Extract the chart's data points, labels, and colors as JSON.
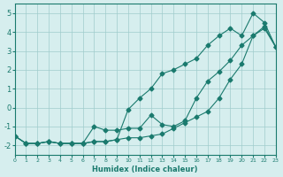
{
  "xlabel": "Humidex (Indice chaleur)",
  "ylabel": "",
  "xlim": [
    0,
    23
  ],
  "ylim": [
    -2.5,
    5.5
  ],
  "yticks": [
    -2,
    -1,
    0,
    1,
    2,
    3,
    4,
    5
  ],
  "xticks": [
    0,
    1,
    2,
    3,
    4,
    5,
    6,
    7,
    8,
    9,
    10,
    11,
    12,
    13,
    14,
    15,
    16,
    17,
    18,
    19,
    20,
    21,
    22,
    23
  ],
  "line_color": "#1a7a6e",
  "bg_color": "#d6eeee",
  "grid_color": "#a0cccc",
  "series": {
    "min": {
      "x": [
        0,
        1,
        2,
        3,
        4,
        5,
        6,
        7,
        8,
        9,
        10,
        11,
        12,
        13,
        14,
        15,
        16,
        17,
        18,
        19,
        20,
        21,
        22,
        23
      ],
      "y": [
        -1.5,
        -1.9,
        -1.9,
        -1.8,
        -1.9,
        -1.9,
        -1.9,
        -1.8,
        -1.8,
        -1.7,
        -1.6,
        -1.6,
        -1.5,
        -1.4,
        -1.1,
        -0.8,
        -0.5,
        -0.2,
        0.5,
        1.5,
        2.3,
        3.8,
        4.3,
        3.2
      ]
    },
    "mean": {
      "x": [
        0,
        1,
        2,
        3,
        4,
        5,
        6,
        7,
        8,
        9,
        10,
        11,
        12,
        13,
        14,
        15,
        16,
        17,
        18,
        19,
        20,
        21,
        22,
        23
      ],
      "y": [
        -1.5,
        -1.9,
        -1.9,
        -1.8,
        -1.9,
        -1.9,
        -1.9,
        -1.0,
        -1.2,
        -1.2,
        -1.1,
        -1.1,
        -0.4,
        -0.9,
        -1.0,
        -0.7,
        0.5,
        1.4,
        1.9,
        2.5,
        3.3,
        3.8,
        4.2,
        3.2
      ]
    },
    "max": {
      "x": [
        0,
        1,
        2,
        3,
        4,
        5,
        6,
        7,
        8,
        9,
        10,
        11,
        12,
        13,
        14,
        15,
        16,
        17,
        18,
        19,
        20,
        21,
        22,
        23
      ],
      "y": [
        -1.5,
        -1.9,
        -1.9,
        -1.8,
        -1.9,
        -1.9,
        -1.9,
        -1.8,
        -1.8,
        -1.7,
        -0.1,
        0.5,
        1.0,
        1.8,
        2.0,
        2.3,
        2.6,
        3.3,
        3.8,
        4.2,
        3.8,
        5.0,
        4.5,
        3.2
      ]
    }
  }
}
